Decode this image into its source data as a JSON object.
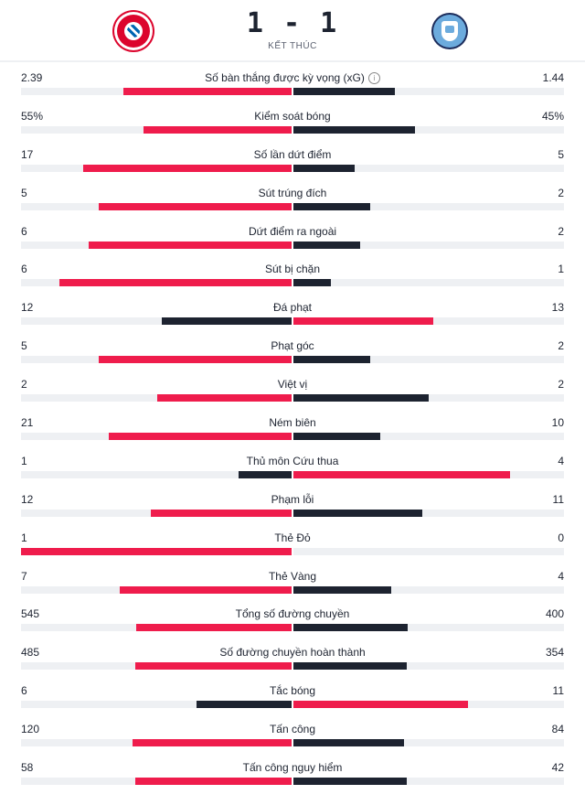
{
  "match": {
    "score": "1 - 1",
    "status": "KẾT THÚC",
    "home_logo_icon": "bayern-munich-logo",
    "away_logo_icon": "manchester-city-logo"
  },
  "colors": {
    "leading": "#ef1c4c",
    "trailing": "#1d2330",
    "track": "#eef0f3"
  },
  "stats": [
    {
      "label": "Số bàn thắng được kỳ vọng (xG)",
      "home": "2.39",
      "away": "1.44",
      "home_value": 2.39,
      "away_value": 1.44,
      "info": true
    },
    {
      "label": "Kiểm soát bóng",
      "home": "55%",
      "away": "45%",
      "home_value": 55,
      "away_value": 45
    },
    {
      "label": "Số lần dứt điểm",
      "home": "17",
      "away": "5",
      "home_value": 17,
      "away_value": 5
    },
    {
      "label": "Sút trúng đích",
      "home": "5",
      "away": "2",
      "home_value": 5,
      "away_value": 2
    },
    {
      "label": "Dứt điểm ra ngoài",
      "home": "6",
      "away": "2",
      "home_value": 6,
      "away_value": 2
    },
    {
      "label": "Sút bị chặn",
      "home": "6",
      "away": "1",
      "home_value": 6,
      "away_value": 1
    },
    {
      "label": "Đá phạt",
      "home": "12",
      "away": "13",
      "home_value": 12,
      "away_value": 13
    },
    {
      "label": "Phạt góc",
      "home": "5",
      "away": "2",
      "home_value": 5,
      "away_value": 2
    },
    {
      "label": "Việt vị",
      "home": "2",
      "away": "2",
      "home_value": 2,
      "away_value": 2
    },
    {
      "label": "Ném biên",
      "home": "21",
      "away": "10",
      "home_value": 21,
      "away_value": 10
    },
    {
      "label": "Thủ môn Cứu thua",
      "home": "1",
      "away": "4",
      "home_value": 1,
      "away_value": 4
    },
    {
      "label": "Phạm lỗi",
      "home": "12",
      "away": "11",
      "home_value": 12,
      "away_value": 11
    },
    {
      "label": "Thẻ Đỏ",
      "home": "1",
      "away": "0",
      "home_value": 1,
      "away_value": 0
    },
    {
      "label": "Thẻ Vàng",
      "home": "7",
      "away": "4",
      "home_value": 7,
      "away_value": 4
    },
    {
      "label": "Tổng số đường chuyền",
      "home": "545",
      "away": "400",
      "home_value": 545,
      "away_value": 400
    },
    {
      "label": "Số đường chuyền hoàn thành",
      "home": "485",
      "away": "354",
      "home_value": 485,
      "away_value": 354
    },
    {
      "label": "Tắc bóng",
      "home": "6",
      "away": "11",
      "home_value": 6,
      "away_value": 11
    },
    {
      "label": "Tấn công",
      "home": "120",
      "away": "84",
      "home_value": 120,
      "away_value": 84
    },
    {
      "label": "Tấn công nguy hiểm",
      "home": "58",
      "away": "42",
      "home_value": 58,
      "away_value": 42
    }
  ]
}
